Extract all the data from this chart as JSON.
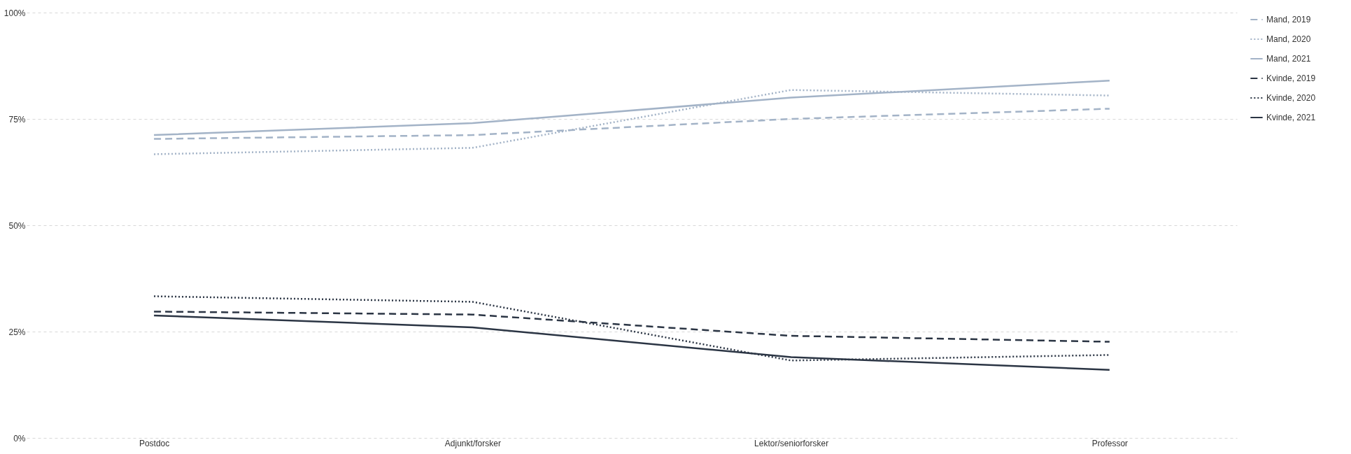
{
  "chart_data": {
    "type": "line",
    "categories": [
      "Postdoc",
      "Adjunkt/forsker",
      "Lektor/seniorforsker",
      "Professor"
    ],
    "series": [
      {
        "name": "Mand, 2019",
        "color": "#a3b3c7",
        "line_style": "dashed",
        "values": [
          70.3,
          71.2,
          75,
          77.4
        ]
      },
      {
        "name": "Mand, 2020",
        "color": "#a3b3c7",
        "line_style": "dotted",
        "values": [
          66.7,
          68.2,
          81.8,
          80.5
        ]
      },
      {
        "name": "Mand, 2021",
        "color": "#a3b3c7",
        "line_style": "solid",
        "values": [
          71.2,
          74,
          80,
          84
        ]
      },
      {
        "name": "Kvinde, 2019",
        "color": "#2b3544",
        "line_style": "dashed",
        "values": [
          29.7,
          29,
          24,
          22.6
        ]
      },
      {
        "name": "Kvinde, 2020",
        "color": "#2b3544",
        "line_style": "dotted",
        "values": [
          33.3,
          32,
          18.2,
          19.5
        ]
      },
      {
        "name": "Kvinde, 2021",
        "color": "#2b3544",
        "line_style": "solid",
        "values": [
          28.8,
          26,
          19,
          16
        ]
      }
    ],
    "ylim": [
      0,
      100
    ],
    "yticks": [
      {
        "value": 0,
        "label": "0%"
      },
      {
        "value": 25,
        "label": "25%"
      },
      {
        "value": 50,
        "label": "50%"
      },
      {
        "value": 75,
        "label": "75%"
      },
      {
        "value": 100,
        "label": "100%"
      }
    ],
    "grid": "y",
    "legend": "top right"
  }
}
